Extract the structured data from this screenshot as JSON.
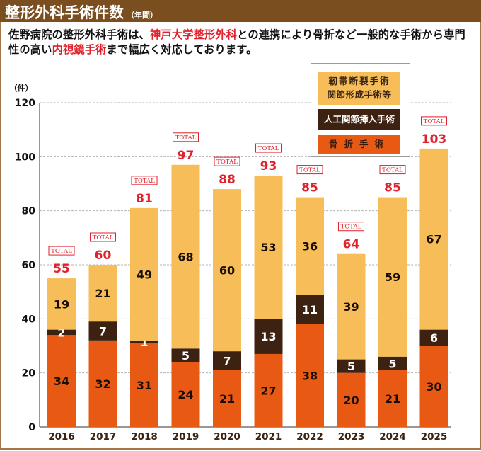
{
  "header": {
    "title": "整形外科手術件数",
    "subtitle": "（年間）"
  },
  "intro": {
    "part1": "佐野病院の整形外科手術は、",
    "highlight1": "神戸大学整形外科",
    "part2": "との連携により骨折など一般的な手術から専門性の高い",
    "highlight2": "内視鏡手術",
    "part3": "まで幅広く対応しております。"
  },
  "legend": {
    "ligament_line1": "靭帯断裂手術",
    "ligament_line2": "関節形成手術等",
    "joint": "人工関節挿入手術",
    "fracture": "骨折手術"
  },
  "colors": {
    "header_bg": "#7a4e1f",
    "ligament": "#f6bd58",
    "joint": "#3d2111",
    "fracture": "#e85a14",
    "total": "#e0202a"
  },
  "chart_data": {
    "type": "bar",
    "stacked": true,
    "title": "整形外科手術件数（年間）",
    "xlabel": "",
    "ylabel": "（件）",
    "ylim": [
      0,
      120
    ],
    "yticks": [
      0,
      20,
      40,
      60,
      80,
      100,
      120
    ],
    "grid": true,
    "legend_position": "top-right",
    "total_label": "TOTAL",
    "categories": [
      "2016",
      "2017",
      "2018",
      "2019",
      "2020",
      "2021",
      "2022",
      "2023",
      "2024",
      "2025"
    ],
    "series": [
      {
        "name": "骨折手術",
        "values": [
          34,
          32,
          31,
          24,
          21,
          27,
          38,
          20,
          21,
          30
        ]
      },
      {
        "name": "人工関節挿入手術",
        "values": [
          2,
          7,
          1,
          5,
          7,
          13,
          11,
          5,
          5,
          6
        ]
      },
      {
        "name": "靭帯断裂手術 関節形成手術等",
        "values": [
          19,
          21,
          49,
          68,
          60,
          53,
          36,
          39,
          59,
          67
        ]
      }
    ],
    "totals": [
      55,
      60,
      81,
      97,
      88,
      93,
      85,
      64,
      85,
      103
    ]
  }
}
